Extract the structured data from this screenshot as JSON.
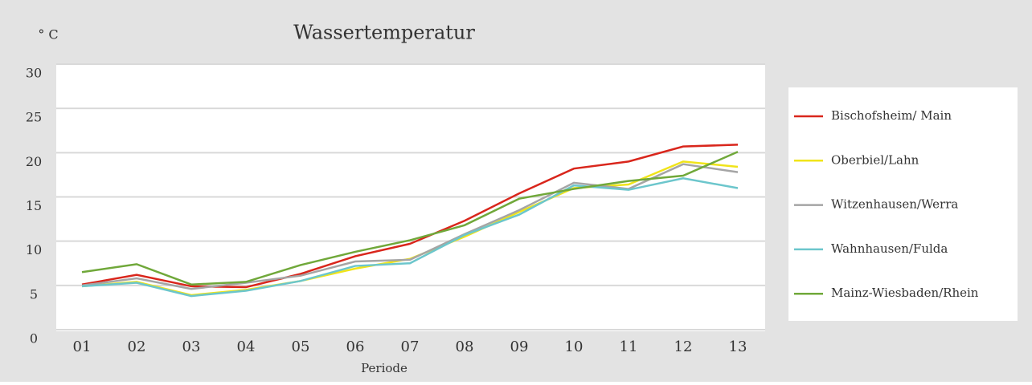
{
  "chart_data": {
    "type": "line",
    "title": "Wassertemperatur",
    "y_label": "° C",
    "x_label": "Periode",
    "categories": [
      "01",
      "02",
      "03",
      "04",
      "05",
      "06",
      "07",
      "08",
      "09",
      "10",
      "11",
      "12",
      "13"
    ],
    "series": [
      {
        "name": "Bischofsheim/ Main",
        "color": "#d9261c",
        "values": [
          5.1,
          6.2,
          4.9,
          4.8,
          6.3,
          8.3,
          9.7,
          12.3,
          15.4,
          18.2,
          19.0,
          20.7,
          20.9
        ]
      },
      {
        "name": "Oberbiel/Lahn",
        "color": "#f0e41a",
        "values": [
          4.9,
          5.4,
          3.9,
          4.5,
          5.5,
          6.9,
          8.0,
          10.5,
          13.3,
          16.0,
          16.4,
          19.0,
          18.4
        ]
      },
      {
        "name": "Witzenhausen/Werra",
        "color": "#a5a5a5",
        "values": [
          5.0,
          5.8,
          4.6,
          5.3,
          6.1,
          7.7,
          7.9,
          10.8,
          13.5,
          16.6,
          15.9,
          18.7,
          17.8
        ]
      },
      {
        "name": "Wahnhausen/Fulda",
        "color": "#6cc6cc",
        "values": [
          4.9,
          5.3,
          3.8,
          4.4,
          5.5,
          7.2,
          7.5,
          10.7,
          13.0,
          16.3,
          15.8,
          17.1,
          16.0
        ]
      },
      {
        "name": "Mainz-Wiesbaden/Rhein",
        "color": "#70a83a",
        "values": [
          6.5,
          7.4,
          5.1,
          5.4,
          7.3,
          8.8,
          10.1,
          11.8,
          14.8,
          15.9,
          16.8,
          17.4,
          20.1
        ]
      }
    ],
    "ylim": [
      0,
      30
    ],
    "yticks": [
      0,
      5,
      10,
      15,
      20,
      25,
      30
    ],
    "grid": true,
    "legend": "right"
  }
}
